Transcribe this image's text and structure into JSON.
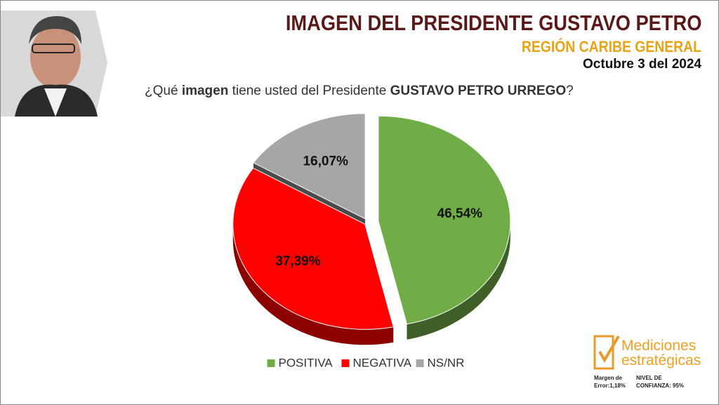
{
  "header": {
    "title": "IMAGEN DEL PRESIDENTE GUSTAVO PETRO",
    "subtitle": "REGIÓN CARIBE GENERAL",
    "date": "Octubre 3 del 2024"
  },
  "question": [
    "¿Qué ",
    "imagen",
    " tiene usted del Presidente ",
    "GUSTAVO PETRO URREGO",
    "?"
  ],
  "chart_data": {
    "type": "pie",
    "categories": [
      "POSITIVA",
      "NEGATIVA",
      "NS/NR"
    ],
    "values": [
      46.54,
      37.39,
      16.07
    ],
    "value_labels": [
      "46,54%",
      "37,39%",
      "16,07%"
    ],
    "colors": [
      "#70ad47",
      "#ff0000",
      "#a6a6a6"
    ],
    "legend": "bottom"
  },
  "footer": {
    "logo": [
      "Mediciones",
      "estratégicas"
    ],
    "margin": "Margen de Error:1,18%",
    "confidence": "NIVEL DE CONFIANZA: 95%"
  }
}
